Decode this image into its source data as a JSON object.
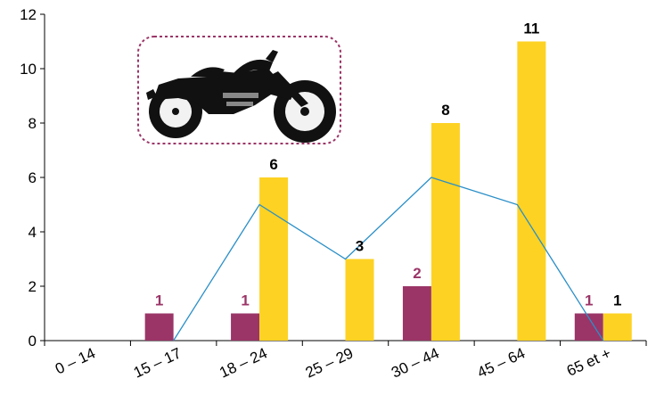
{
  "chart_data": {
    "type": "bar",
    "title": "",
    "xlabel": "",
    "ylabel": "",
    "categories": [
      "0 – 14",
      "15 – 17",
      "18 – 24",
      "25 – 29",
      "30 – 44",
      "45 – 64",
      "65 et +"
    ],
    "ylim": [
      0,
      12
    ],
    "yticks": [
      "0",
      "2",
      "4",
      "6",
      "8",
      "10",
      "12"
    ],
    "grid": false,
    "legend": "none",
    "series": [
      {
        "type": "bar",
        "color": "#9b3567",
        "values": [
          0,
          1,
          1,
          0,
          2,
          0,
          1
        ],
        "labels": [
          "",
          "1",
          "1",
          "",
          "2",
          "",
          "1"
        ]
      },
      {
        "type": "bar",
        "color": "#fdd223",
        "values": [
          0,
          0,
          6,
          3,
          8,
          11,
          1
        ],
        "labels": [
          "",
          "",
          "6",
          "3",
          "8",
          "11",
          "1"
        ]
      },
      {
        "type": "line",
        "color": "#2a8fc8",
        "values": [
          null,
          0,
          5,
          3,
          6,
          5,
          0
        ]
      }
    ],
    "image": {
      "icon": "motorcycle-icon",
      "border_color": "#9b3567"
    }
  }
}
